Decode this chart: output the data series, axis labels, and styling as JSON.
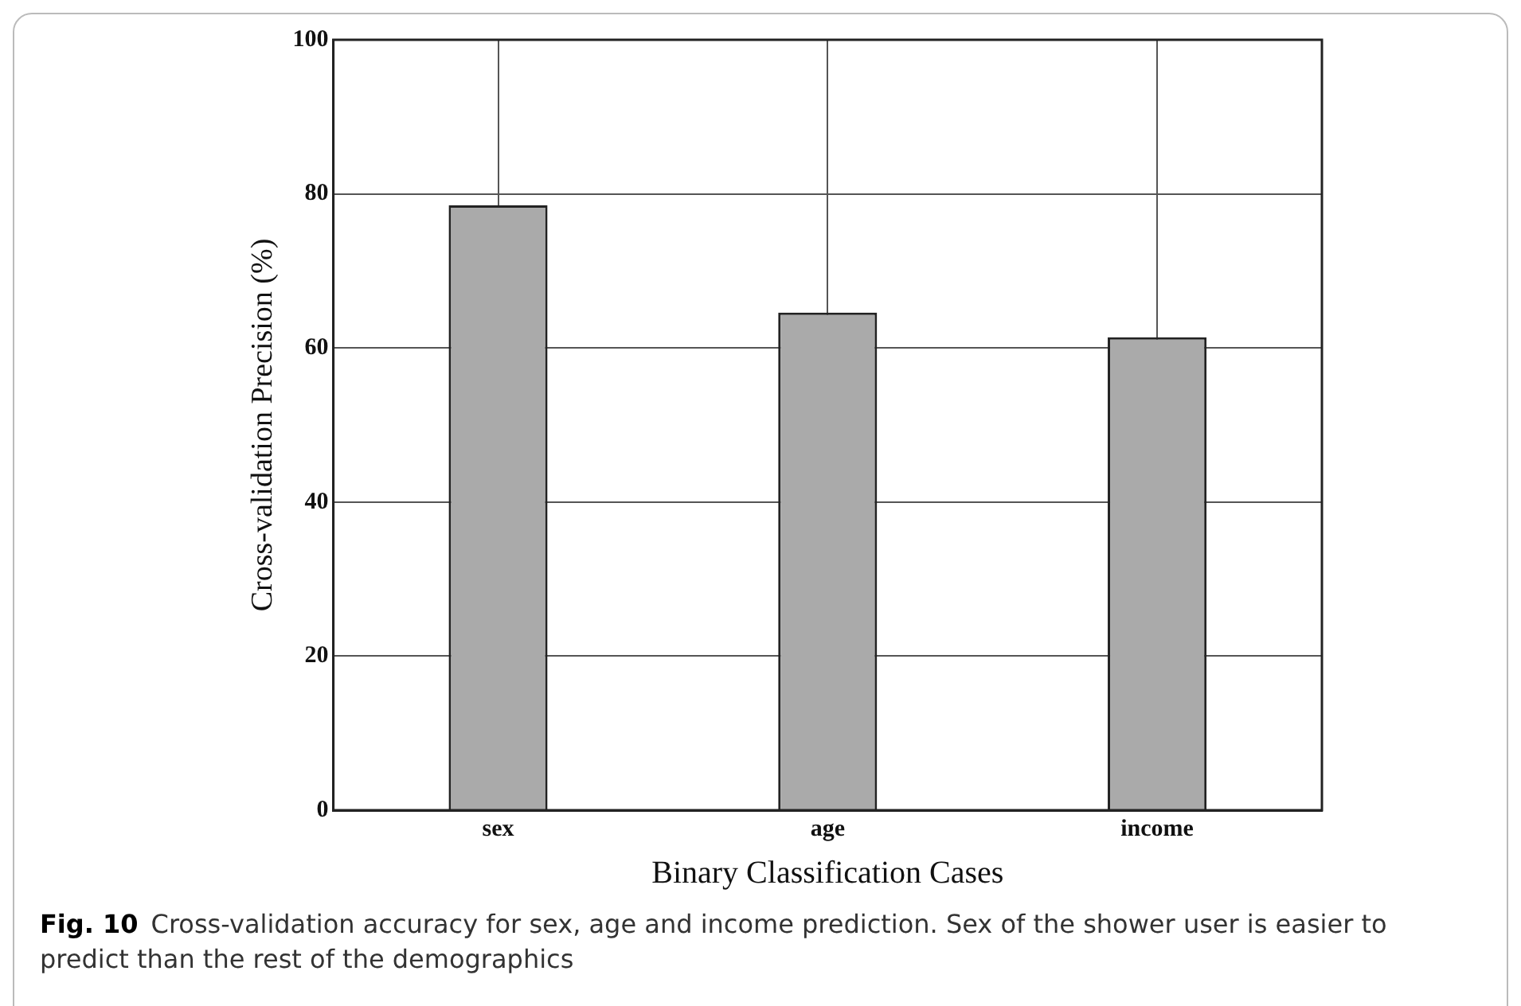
{
  "chart_data": {
    "type": "bar",
    "xlabel": "Binary Classification Cases",
    "ylabel": "Cross-validation Precision (%)",
    "categories": [
      "sex",
      "age",
      "income"
    ],
    "values": [
      78.5,
      64.6,
      61.4
    ],
    "color": "#aaaaaa",
    "ylim": [
      0,
      100
    ],
    "yticks": [
      0,
      20,
      40,
      60,
      80,
      100
    ],
    "grid": true,
    "legend": false,
    "annotations": [
      "Fig. 10",
      "Cross-validation accuracy for sex, age and income prediction. Sex of the shower user is easier to predict than the rest of the demographics"
    ]
  }
}
